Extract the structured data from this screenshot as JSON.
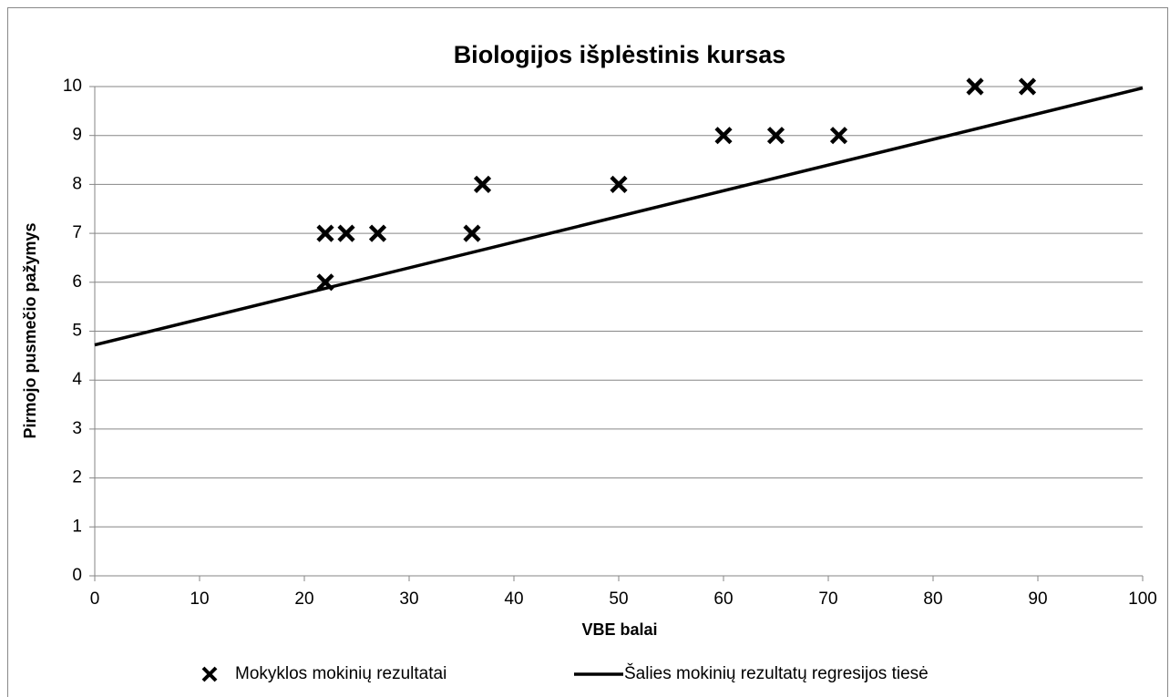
{
  "chart_data": {
    "type": "scatter",
    "title": "Biologijos išplėstinis kursas",
    "xlabel": "VBE balai",
    "ylabel": "Pirmojo pusmečio pažymys",
    "series": [
      {
        "name": "Mokyklos mokinių rezultatai",
        "type": "scatter",
        "color": "#000000",
        "x": [
          22,
          24,
          27,
          22,
          36,
          37,
          50,
          60,
          65,
          71,
          84,
          89
        ],
        "values": [
          7,
          7,
          7,
          6,
          7,
          8,
          8,
          9,
          9,
          9,
          10,
          10
        ]
      },
      {
        "name": "Šalies mokinių rezultatų regresijos tiesė",
        "type": "line",
        "color": "#000000",
        "x": [
          0,
          100
        ],
        "values": [
          4.72,
          9.97
        ]
      }
    ],
    "xlim": [
      0,
      100
    ],
    "xticks": [
      0,
      10,
      20,
      30,
      40,
      50,
      60,
      70,
      80,
      90,
      100
    ],
    "ylim": [
      0,
      10
    ],
    "yticks": [
      0,
      1,
      2,
      3,
      4,
      5,
      6,
      7,
      8,
      9,
      10
    ],
    "grid": true,
    "legend": "bottom"
  }
}
